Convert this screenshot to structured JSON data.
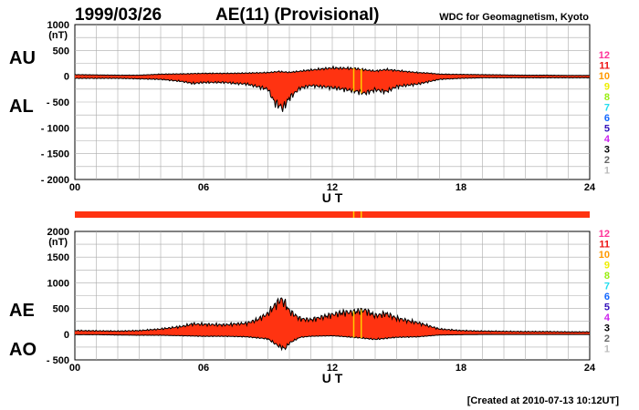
{
  "header": {
    "date": "1999/03/26",
    "title": "AE(11) (Provisional)",
    "source": "WDC for Geomagnetism, Kyoto"
  },
  "footer": {
    "created": "[Created at 2010-07-13 10:12UT]"
  },
  "colors": {
    "fill": "#ff3311",
    "outline": "#000000",
    "grid": "#aaaaaa",
    "bar": "#ff3311",
    "station_marks": "#ffcc00"
  },
  "station_counts": [
    {
      "label": "12",
      "color": "#ff3399"
    },
    {
      "label": "11",
      "color": "#ee1111"
    },
    {
      "label": "10",
      "color": "#ff9900"
    },
    {
      "label": "9",
      "color": "#eeee00"
    },
    {
      "label": "8",
      "color": "#99ee11"
    },
    {
      "label": "7",
      "color": "#22ddee"
    },
    {
      "label": "6",
      "color": "#1166ff"
    },
    {
      "label": "5",
      "color": "#3311bb"
    },
    {
      "label": "4",
      "color": "#cc22ee"
    },
    {
      "label": "3",
      "color": "#000000"
    },
    {
      "label": "2",
      "color": "#666666"
    },
    {
      "label": "1",
      "color": "#bbbbbb"
    }
  ],
  "chart_data": [
    {
      "type": "area",
      "title": "AU / AL",
      "series_labels": [
        "AU",
        "AL"
      ],
      "unit": "(nT)",
      "xlabel": "U T",
      "xlim": [
        0,
        24
      ],
      "ylim": [
        -2000,
        1000
      ],
      "yticks": [
        1000,
        500,
        0,
        -500,
        -1000,
        -1500,
        -2000
      ],
      "ytick_labels": [
        "1000",
        "500",
        "0",
        "- 500",
        "- 1000",
        "- 1500",
        "- 2000"
      ],
      "xticks": [
        0,
        6,
        12,
        18,
        24
      ],
      "xtick_labels": [
        "00",
        "06",
        "12",
        "18",
        "24"
      ],
      "upper": {
        "name": "AU",
        "x": [
          0,
          1,
          2,
          3,
          4,
          5,
          6,
          7,
          8,
          9,
          9.5,
          10,
          11,
          11.5,
          12,
          12.5,
          13,
          14,
          14.5,
          15,
          16,
          16.5,
          17,
          18,
          19,
          20,
          21,
          22,
          23,
          24
        ],
        "y": [
          30,
          25,
          20,
          20,
          40,
          45,
          55,
          55,
          60,
          70,
          90,
          75,
          120,
          140,
          160,
          155,
          150,
          100,
          130,
          110,
          70,
          60,
          40,
          35,
          30,
          25,
          20,
          20,
          15,
          15
        ]
      },
      "lower": {
        "name": "AL",
        "x": [
          0,
          1,
          2,
          3,
          4,
          5,
          5.5,
          6,
          7,
          7.5,
          8,
          9,
          9.3,
          9.7,
          10,
          10.5,
          11,
          12,
          13,
          13.5,
          14,
          14.5,
          15,
          16,
          17,
          18,
          19,
          20,
          21,
          22,
          23,
          24
        ],
        "y": [
          -40,
          -40,
          -40,
          -50,
          -60,
          -100,
          -140,
          -120,
          -120,
          -140,
          -150,
          -250,
          -500,
          -620,
          -420,
          -230,
          -180,
          -220,
          -280,
          -330,
          -260,
          -300,
          -200,
          -150,
          -60,
          -40,
          -30,
          -30,
          -30,
          -30,
          -30,
          -30
        ]
      }
    },
    {
      "type": "area",
      "title": "AE / AO",
      "series_labels": [
        "AE",
        "AO"
      ],
      "unit": "(nT)",
      "xlabel": "U T",
      "xlim": [
        0,
        24
      ],
      "ylim": [
        -500,
        2000
      ],
      "yticks": [
        2000,
        1500,
        1000,
        500,
        0,
        -500
      ],
      "ytick_labels": [
        "2000",
        "1500",
        "1000",
        "500",
        "0",
        "- 500"
      ],
      "xticks": [
        0,
        6,
        12,
        18,
        24
      ],
      "xtick_labels": [
        "00",
        "06",
        "12",
        "18",
        "24"
      ],
      "upper": {
        "name": "AE",
        "x": [
          0,
          1,
          2,
          3,
          4,
          5,
          5.5,
          6,
          7,
          7.5,
          8,
          8.5,
          9,
          9.3,
          9.6,
          9.8,
          10,
          10.5,
          11,
          12,
          12.5,
          13,
          13.5,
          14,
          14.5,
          15,
          16,
          16.5,
          17,
          18,
          19,
          20,
          21,
          22,
          23,
          24
        ],
        "y": [
          70,
          65,
          60,
          70,
          100,
          150,
          200,
          190,
          180,
          200,
          210,
          280,
          400,
          550,
          680,
          600,
          450,
          300,
          280,
          380,
          420,
          430,
          470,
          360,
          400,
          310,
          220,
          160,
          100,
          70,
          60,
          55,
          50,
          50,
          45,
          45
        ]
      },
      "lower": {
        "name": "AO",
        "x": [
          0,
          1,
          2,
          3,
          4,
          5,
          6,
          7,
          8,
          9,
          9.5,
          9.8,
          10,
          10.5,
          11,
          12,
          13,
          14,
          15,
          16,
          17,
          18,
          19,
          20,
          21,
          22,
          23,
          24
        ],
        "y": [
          -10,
          -10,
          -15,
          -20,
          -20,
          -30,
          -40,
          -40,
          -50,
          -90,
          -230,
          -280,
          -170,
          -60,
          -40,
          -30,
          -60,
          -100,
          -60,
          -50,
          -15,
          -10,
          -5,
          -5,
          -5,
          -5,
          -5,
          -5
        ]
      }
    }
  ],
  "station_marks_ut": [
    13.0,
    13.35
  ]
}
